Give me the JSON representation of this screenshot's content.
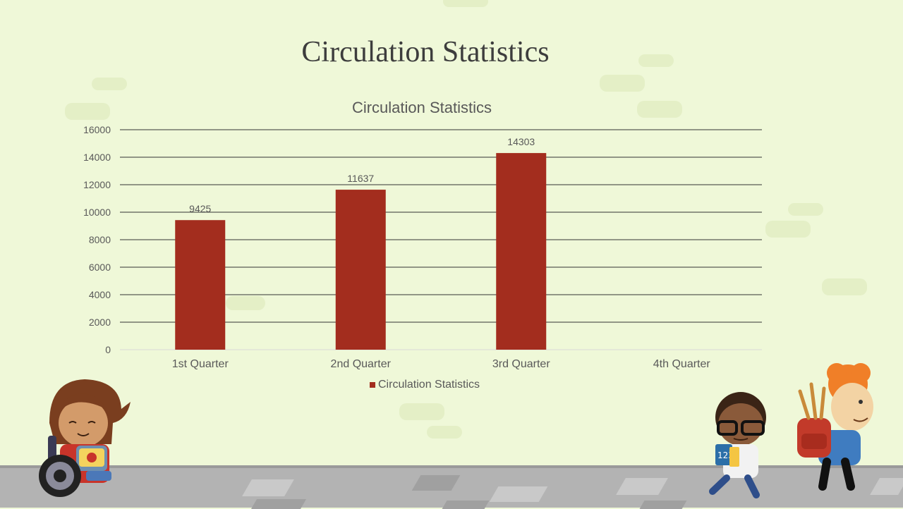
{
  "slide": {
    "title": "Circulation Statistics"
  },
  "chart_data": {
    "type": "bar",
    "title": "Circulation Statistics",
    "categories": [
      "1st Quarter",
      "2nd Quarter",
      "3rd Quarter",
      "4th Quarter"
    ],
    "series": [
      {
        "name": "Circulation Statistics",
        "values": [
          9425,
          11637,
          14303,
          null
        ],
        "color": "#a32d1e"
      }
    ],
    "data_labels": [
      "9425",
      "11637",
      "14303",
      ""
    ],
    "ylim": [
      0,
      16000
    ],
    "yticks": [
      0,
      2000,
      4000,
      6000,
      8000,
      10000,
      12000,
      14000,
      16000
    ],
    "grid": true,
    "legend": "bottom"
  },
  "colors": {
    "background": "#eff8d8",
    "bar": "#a32d1e",
    "gridline": "#333333",
    "axis_text": "#595959"
  },
  "illustrations": [
    "girl-in-wheelchair",
    "boy-with-glasses-and-books",
    "boy-with-backpack"
  ]
}
